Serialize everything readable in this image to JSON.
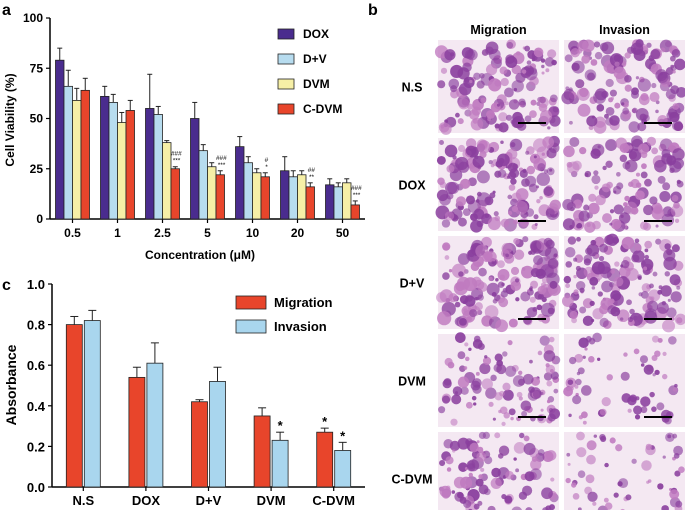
{
  "panels": {
    "a": "a",
    "b": "b",
    "c": "c"
  },
  "colors": {
    "DOX": "#4a2c8e",
    "D+V": "#b7dcef",
    "DVM": "#f6efa6",
    "C-DVM": "#e8452b",
    "Migration": "#e8452b",
    "Invasion": "#a9d6ee",
    "micro_base": "#f4e8f2",
    "micro_stain": "#8a3f9e",
    "micro_light": "#c07bc0"
  },
  "chart_data": [
    {
      "type": "bar",
      "panel": "a",
      "title": "",
      "ylabel": "Cell Viability  (%)",
      "xlabel": "Concentration (μM)",
      "ylim": [
        0,
        100
      ],
      "yticks": [
        "0",
        "25",
        "50",
        "75",
        "100"
      ],
      "categories": [
        "0.5",
        "1",
        "2.5",
        "5",
        "10",
        "20",
        "50"
      ],
      "legend_position": "top-right",
      "series": [
        {
          "name": "DOX",
          "values": [
            79,
            61,
            55,
            50,
            36,
            24,
            17
          ],
          "errors": [
            6,
            5,
            17,
            8,
            5,
            7,
            3
          ]
        },
        {
          "name": "D+V",
          "values": [
            66,
            58,
            52,
            34,
            28,
            21,
            16
          ],
          "errors": [
            8,
            4,
            4,
            3,
            3,
            3,
            2
          ]
        },
        {
          "name": "DVM",
          "values": [
            59,
            48,
            38,
            26,
            23,
            22,
            18
          ],
          "errors": [
            6,
            5,
            1,
            2,
            2,
            2,
            2
          ]
        },
        {
          "name": "C-DVM",
          "values": [
            64,
            54,
            25,
            22,
            21,
            16,
            7
          ],
          "errors": [
            6,
            5,
            1,
            2,
            2,
            2,
            2
          ]
        }
      ],
      "annotations": [
        {
          "category": "2.5",
          "text": "###"
        },
        {
          "category": "2.5",
          "text": "***"
        },
        {
          "category": "5",
          "text": "###"
        },
        {
          "category": "5",
          "text": "***"
        },
        {
          "category": "10",
          "text": "#"
        },
        {
          "category": "10",
          "text": "*"
        },
        {
          "category": "20",
          "text": "##"
        },
        {
          "category": "20",
          "text": "**"
        },
        {
          "category": "50",
          "text": "###"
        },
        {
          "category": "50",
          "text": "***"
        }
      ]
    },
    {
      "type": "bar",
      "panel": "c",
      "title": "",
      "ylabel": "Absorbance",
      "xlabel": "",
      "ylim": [
        0,
        1.0
      ],
      "yticks": [
        "0.0",
        "0.2",
        "0.4",
        "0.6",
        "0.8",
        "1.0"
      ],
      "categories": [
        "N.S",
        "DOX",
        "D+V",
        "DVM",
        "C-DVM"
      ],
      "legend_position": "top-right",
      "series": [
        {
          "name": "Migration",
          "values": [
            0.8,
            0.54,
            0.42,
            0.35,
            0.27
          ],
          "errors": [
            0.04,
            0.05,
            0.01,
            0.04,
            0.02
          ],
          "stars": [
            "",
            "",
            "",
            "",
            "*"
          ]
        },
        {
          "name": "Invasion",
          "values": [
            0.82,
            0.61,
            0.52,
            0.23,
            0.18
          ],
          "errors": [
            0.05,
            0.1,
            0.07,
            0.04,
            0.04
          ],
          "stars": [
            "",
            "",
            "",
            "*",
            "*"
          ]
        }
      ]
    }
  ],
  "panel_b": {
    "columns": [
      "Migration",
      "Invasion"
    ],
    "rows": [
      "N.S",
      "DOX",
      "D+V",
      "DVM",
      "C-DVM"
    ],
    "density": [
      [
        0.55,
        0.55
      ],
      [
        0.62,
        0.5
      ],
      [
        0.65,
        0.58
      ],
      [
        0.4,
        0.25
      ],
      [
        0.45,
        0.25
      ]
    ]
  }
}
